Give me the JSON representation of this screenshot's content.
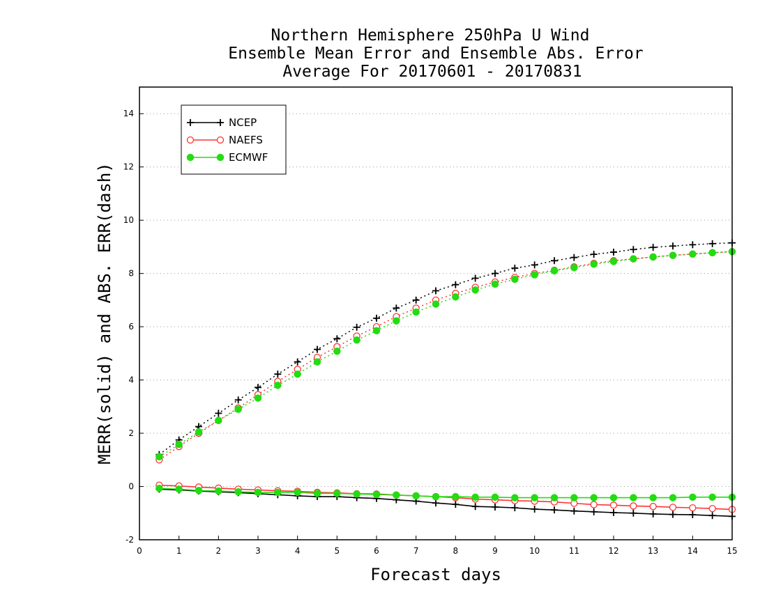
{
  "chart_data": {
    "type": "line",
    "title": [
      "Northern Hemisphere 250hPa U Wind",
      "Ensemble Mean Error and Ensemble Abs. Error",
      "Average For 20170601 - 20170831"
    ],
    "xlabel": "Forecast days",
    "ylabel": "MERR(solid) and ABS. ERR(dash)",
    "xlim": [
      0,
      15
    ],
    "ylim": [
      -2,
      15
    ],
    "xticks": [
      0,
      1,
      2,
      3,
      4,
      5,
      6,
      7,
      8,
      9,
      10,
      11,
      12,
      13,
      14,
      15
    ],
    "yticks": [
      -2,
      0,
      2,
      4,
      6,
      8,
      10,
      12,
      14
    ],
    "grid": "horizontal dotted",
    "legend_position": "top-left",
    "x": [
      0.5,
      1,
      1.5,
      2,
      2.5,
      3,
      3.5,
      4,
      4.5,
      5,
      5.5,
      6,
      6.5,
      7,
      7.5,
      8,
      8.5,
      9,
      9.5,
      10,
      10.5,
      11,
      11.5,
      12,
      12.5,
      13,
      13.5,
      14,
      14.5,
      15
    ],
    "series": [
      {
        "name": "NCEP",
        "color": "#000000",
        "marker": "plus",
        "merr": [
          -0.1,
          -0.13,
          -0.17,
          -0.2,
          -0.23,
          -0.27,
          -0.31,
          -0.35,
          -0.38,
          -0.38,
          -0.42,
          -0.45,
          -0.5,
          -0.55,
          -0.62,
          -0.67,
          -0.75,
          -0.77,
          -0.8,
          -0.85,
          -0.88,
          -0.92,
          -0.95,
          -0.98,
          -1.0,
          -1.03,
          -1.05,
          -1.06,
          -1.09,
          -1.12
        ],
        "abs_err": [
          1.2,
          1.75,
          2.25,
          2.75,
          3.25,
          3.72,
          4.22,
          4.68,
          5.15,
          5.55,
          5.98,
          6.32,
          6.7,
          7.0,
          7.35,
          7.58,
          7.82,
          8.0,
          8.2,
          8.32,
          8.48,
          8.6,
          8.72,
          8.8,
          8.9,
          8.98,
          9.03,
          9.08,
          9.12,
          9.15
        ]
      },
      {
        "name": "NAEFS",
        "color": "#ff3333",
        "marker": "open-circle",
        "merr": [
          0.05,
          0.02,
          -0.02,
          -0.06,
          -0.1,
          -0.13,
          -0.16,
          -0.18,
          -0.22,
          -0.24,
          -0.27,
          -0.28,
          -0.32,
          -0.35,
          -0.38,
          -0.42,
          -0.47,
          -0.5,
          -0.53,
          -0.55,
          -0.58,
          -0.63,
          -0.68,
          -0.7,
          -0.73,
          -0.75,
          -0.78,
          -0.8,
          -0.83,
          -0.86
        ],
        "abs_err": [
          1.0,
          1.5,
          2.0,
          2.48,
          2.95,
          3.45,
          3.95,
          4.4,
          4.85,
          5.25,
          5.65,
          6.0,
          6.38,
          6.7,
          7.0,
          7.25,
          7.48,
          7.68,
          7.85,
          8.0,
          8.12,
          8.25,
          8.38,
          8.48,
          8.55,
          8.62,
          8.68,
          8.73,
          8.78,
          8.82
        ]
      },
      {
        "name": "ECMWF",
        "color": "#22dd11",
        "marker": "filled-circle",
        "merr": [
          -0.07,
          -0.1,
          -0.15,
          -0.17,
          -0.2,
          -0.22,
          -0.22,
          -0.22,
          -0.26,
          -0.26,
          -0.28,
          -0.3,
          -0.32,
          -0.35,
          -0.38,
          -0.38,
          -0.4,
          -0.4,
          -0.42,
          -0.42,
          -0.42,
          -0.42,
          -0.42,
          -0.42,
          -0.42,
          -0.42,
          -0.42,
          -0.4,
          -0.4,
          -0.4
        ],
        "abs_err": [
          1.12,
          1.58,
          2.05,
          2.48,
          2.9,
          3.32,
          3.8,
          4.22,
          4.68,
          5.08,
          5.5,
          5.85,
          6.22,
          6.55,
          6.85,
          7.12,
          7.38,
          7.6,
          7.78,
          7.95,
          8.1,
          8.22,
          8.35,
          8.45,
          8.55,
          8.62,
          8.68,
          8.73,
          8.78,
          8.82
        ]
      }
    ]
  }
}
